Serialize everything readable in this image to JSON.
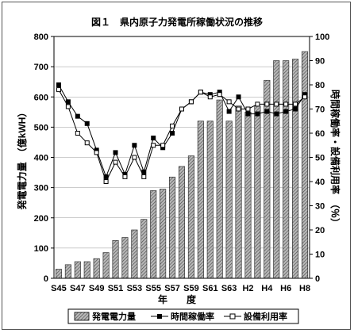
{
  "chart_data": {
    "type": "bar+line",
    "title": "図１　県内原子力発電所稼働状況の推移",
    "xlabel": "年　　度",
    "ylabel_left": "発電電力量　（億kWH）",
    "ylabel_right": "時間稼働率・設備利用率　（％）",
    "ylim_left": [
      0,
      800
    ],
    "ylim_right": [
      0,
      100
    ],
    "left_ticks": [
      "0",
      "100",
      "200",
      "300",
      "400",
      "500",
      "600",
      "700",
      "800"
    ],
    "right_ticks": [
      "0",
      "10",
      "20",
      "30",
      "40",
      "50",
      "60",
      "70",
      "80",
      "90",
      "100"
    ],
    "categories": [
      "S45",
      "S46",
      "S47",
      "S48",
      "S49",
      "S50",
      "S51",
      "S52",
      "S53",
      "S54",
      "S55",
      "S56",
      "S57",
      "S58",
      "S59",
      "S60",
      "S61",
      "S62",
      "S63",
      "H1",
      "H2",
      "H3",
      "H4",
      "H5",
      "H6",
      "H7",
      "H8"
    ],
    "x_tick_labels": [
      "S45",
      "S47",
      "S49",
      "S51",
      "S53",
      "S55",
      "S57",
      "S59",
      "S61",
      "S63",
      "H2",
      "H4",
      "H6",
      "H8"
    ],
    "series": [
      {
        "name": "発電電力量",
        "kind": "bar",
        "axis": "left",
        "values": [
          30,
          45,
          55,
          55,
          65,
          85,
          125,
          135,
          160,
          195,
          290,
          295,
          335,
          370,
          405,
          520,
          520,
          590,
          520,
          570,
          550,
          570,
          655,
          720,
          720,
          725,
          750
        ]
      },
      {
        "name": "時間稼働率",
        "kind": "line",
        "axis": "right",
        "marker": "filled-square",
        "values": [
          80,
          73,
          67,
          64,
          53,
          42,
          52,
          43,
          55,
          44,
          58,
          54,
          60,
          70,
          73,
          77,
          76,
          77,
          69,
          75,
          68,
          68,
          69,
          68,
          69,
          70,
          76
        ]
      },
      {
        "name": "設備利用率",
        "kind": "line",
        "axis": "right",
        "marker": "open-square",
        "values": [
          78,
          71,
          60,
          56,
          52,
          40,
          48,
          42,
          50,
          42,
          55,
          55,
          63,
          70,
          73,
          77,
          75,
          76,
          73,
          70,
          70,
          72,
          72,
          72,
          72,
          72,
          75
        ]
      }
    ],
    "legend_position": "bottom"
  },
  "colors": {
    "bar_fill": "#a9a9a9",
    "bar_hatch": "#555555",
    "line": "#000000"
  }
}
